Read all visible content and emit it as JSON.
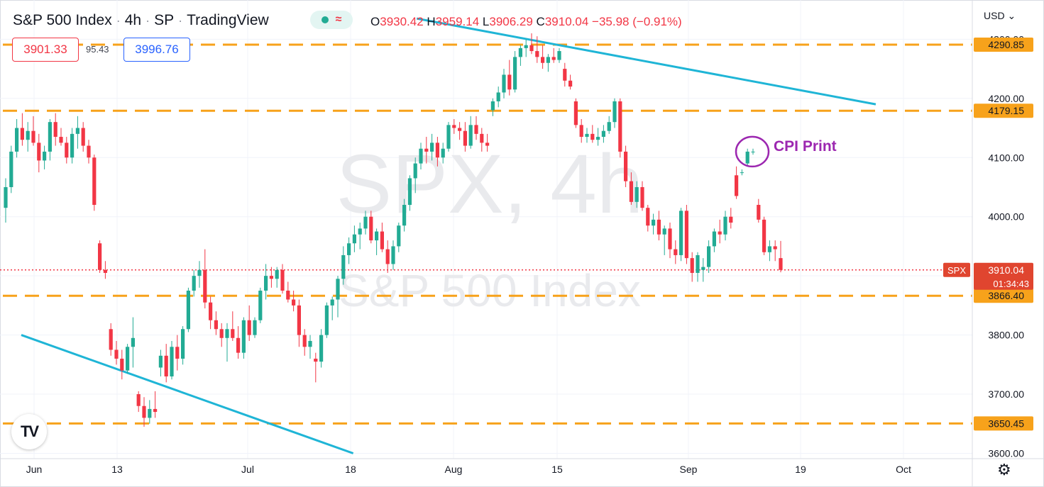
{
  "header": {
    "symbol_name": "S&P 500 Index",
    "interval": "4h",
    "exchange": "SP",
    "source": "TradingView",
    "ohlc": {
      "open_label": "O",
      "open": "3930.42",
      "high_label": "H",
      "high": "3959.14",
      "low_label": "L",
      "low": "3906.29",
      "close_label": "C",
      "close": "3910.04",
      "change": "−35.98",
      "change_pct": "(−0.91%)"
    },
    "sell_price": "3901.33",
    "spread": "95.43",
    "buy_price": "3996.76",
    "currency": "USD"
  },
  "watermark": {
    "symbol": "SPX, 4h",
    "name": "S&P 500 Index"
  },
  "colors": {
    "up": "#22ab94",
    "down": "#f23645",
    "level": "#f7a21b",
    "trend": "#1fb5d6",
    "annotation": "#9c27b0",
    "price_tag": "#e0452f"
  },
  "icons": {
    "logo": "tradingview-logo-icon",
    "settings": "gear-icon",
    "status": "status-dot-icon",
    "chevron": "chevron-down-icon"
  },
  "chart_data": {
    "type": "candlestick",
    "symbol": "SPX",
    "interval": "4h",
    "y_axis": {
      "min": 3600,
      "max": 4300,
      "ticks": [
        "3600.00",
        "3700.00",
        "3800.00",
        "3900.00",
        "4000.00",
        "4100.00",
        "4200.00",
        "4300.00"
      ]
    },
    "x_axis": {
      "ticks": [
        "Jun",
        "13",
        "Jul",
        "18",
        "Aug",
        "15",
        "Sep",
        "19",
        "Oct"
      ]
    },
    "horizontal_levels": [
      4290.85,
      4179.15,
      3866.4,
      3650.45
    ],
    "level_labels": [
      "4290.85",
      "4179.15",
      "3866.40",
      "3650.45"
    ],
    "current_price": {
      "symbol": "SPX",
      "price": 3910.04,
      "label": "3910.04",
      "countdown": "01:34:43"
    },
    "trendlines": [
      {
        "from": {
          "date": "2022-06-01",
          "price": 3800
        },
        "to": {
          "date": "2022-07-18",
          "price": 3600
        }
      },
      {
        "from": {
          "date": "2022-07-27",
          "price": 4335
        },
        "to": {
          "date": "2022-09-30",
          "price": 4190
        }
      }
    ],
    "annotation": {
      "text": "CPI Print",
      "date": "2022-09-10",
      "price": 4110
    },
    "candles": [
      [
        4015,
        4065,
        3990,
        4050
      ],
      [
        4050,
        4120,
        4040,
        4110
      ],
      [
        4110,
        4165,
        4100,
        4150
      ],
      [
        4150,
        4175,
        4120,
        4130
      ],
      [
        4130,
        4160,
        4110,
        4145
      ],
      [
        4145,
        4170,
        4120,
        4125
      ],
      [
        4125,
        4140,
        4075,
        4095
      ],
      [
        4095,
        4120,
        4080,
        4110
      ],
      [
        4110,
        4165,
        4095,
        4160
      ],
      [
        4160,
        4175,
        4120,
        4135
      ],
      [
        4135,
        4150,
        4120,
        4125
      ],
      [
        4125,
        4135,
        4090,
        4100
      ],
      [
        4100,
        4150,
        4090,
        4140
      ],
      [
        4140,
        4170,
        4115,
        4150
      ],
      [
        4150,
        4160,
        4110,
        4120
      ],
      [
        4120,
        4130,
        4090,
        4100
      ],
      [
        4100,
        4105,
        4010,
        4020
      ],
      [
        3955,
        3960,
        3905,
        3910
      ],
      [
        3910,
        3925,
        3895,
        3905
      ],
      [
        3810,
        3820,
        3765,
        3775
      ],
      [
        3775,
        3790,
        3750,
        3760
      ],
      [
        3760,
        3775,
        3725,
        3740
      ],
      [
        3740,
        3785,
        3735,
        3780
      ],
      [
        3780,
        3830,
        3745,
        3795
      ],
      [
        3700,
        3705,
        3670,
        3680
      ],
      [
        3680,
        3695,
        3645,
        3660
      ],
      [
        3660,
        3690,
        3650,
        3675
      ],
      [
        3675,
        3705,
        3660,
        3670
      ],
      [
        3745,
        3775,
        3730,
        3765
      ],
      [
        3765,
        3785,
        3720,
        3730
      ],
      [
        3730,
        3790,
        3725,
        3780
      ],
      [
        3780,
        3800,
        3740,
        3760
      ],
      [
        3760,
        3815,
        3750,
        3810
      ],
      [
        3810,
        3880,
        3805,
        3875
      ],
      [
        3875,
        3910,
        3865,
        3900
      ],
      [
        3900,
        3925,
        3880,
        3910
      ],
      [
        3910,
        3945,
        3845,
        3855
      ],
      [
        3855,
        3865,
        3810,
        3825
      ],
      [
        3825,
        3840,
        3800,
        3810
      ],
      [
        3810,
        3820,
        3780,
        3795
      ],
      [
        3795,
        3820,
        3755,
        3810
      ],
      [
        3810,
        3840,
        3790,
        3795
      ],
      [
        3795,
        3815,
        3760,
        3770
      ],
      [
        3770,
        3830,
        3760,
        3825
      ],
      [
        3825,
        3850,
        3790,
        3800
      ],
      [
        3800,
        3830,
        3795,
        3825
      ],
      [
        3825,
        3880,
        3820,
        3875
      ],
      [
        3875,
        3920,
        3860,
        3900
      ],
      [
        3900,
        3915,
        3880,
        3895
      ],
      [
        3895,
        3915,
        3880,
        3910
      ],
      [
        3910,
        3920,
        3870,
        3875
      ],
      [
        3875,
        3890,
        3855,
        3860
      ],
      [
        3860,
        3875,
        3840,
        3850
      ],
      [
        3850,
        3860,
        3780,
        3800
      ],
      [
        3800,
        3810,
        3765,
        3780
      ],
      [
        3780,
        3800,
        3760,
        3790
      ],
      [
        3760,
        3770,
        3720,
        3755
      ],
      [
        3755,
        3810,
        3745,
        3800
      ],
      [
        3800,
        3855,
        3795,
        3850
      ],
      [
        3850,
        3865,
        3825,
        3860
      ],
      [
        3860,
        3900,
        3830,
        3895
      ],
      [
        3895,
        3950,
        3885,
        3935
      ],
      [
        3935,
        3965,
        3920,
        3955
      ],
      [
        3955,
        3985,
        3940,
        3970
      ],
      [
        3970,
        3990,
        3945,
        3980
      ],
      [
        3980,
        4010,
        3970,
        4000
      ],
      [
        4000,
        4010,
        3955,
        3960
      ],
      [
        3960,
        3980,
        3935,
        3975
      ],
      [
        3975,
        3990,
        3940,
        3945
      ],
      [
        3945,
        3960,
        3905,
        3920
      ],
      [
        3920,
        3960,
        3910,
        3950
      ],
      [
        3950,
        3990,
        3940,
        3985
      ],
      [
        3985,
        4030,
        3975,
        4020
      ],
      [
        4020,
        4070,
        4010,
        4065
      ],
      [
        4065,
        4100,
        4040,
        4090
      ],
      [
        4090,
        4125,
        4080,
        4115
      ],
      [
        4115,
        4135,
        4090,
        4110
      ],
      [
        4110,
        4140,
        4095,
        4125
      ],
      [
        4125,
        4135,
        4085,
        4100
      ],
      [
        4100,
        4125,
        4090,
        4115
      ],
      [
        4115,
        4160,
        4110,
        4155
      ],
      [
        4155,
        4165,
        4140,
        4150
      ],
      [
        4150,
        4160,
        4130,
        4145
      ],
      [
        4145,
        4160,
        4110,
        4120
      ],
      [
        4120,
        4170,
        4115,
        4155
      ],
      [
        4155,
        4170,
        4130,
        4140
      ],
      [
        4140,
        4150,
        4110,
        4125
      ],
      [
        4125,
        4140,
        4110,
        4120
      ],
      [
        4180,
        4200,
        4170,
        4195
      ],
      [
        4195,
        4220,
        4185,
        4210
      ],
      [
        4210,
        4250,
        4200,
        4240
      ],
      [
        4240,
        4265,
        4205,
        4215
      ],
      [
        4215,
        4280,
        4210,
        4270
      ],
      [
        4270,
        4290,
        4255,
        4285
      ],
      [
        4285,
        4300,
        4270,
        4290
      ],
      [
        4290,
        4310,
        4275,
        4280
      ],
      [
        4280,
        4305,
        4260,
        4270
      ],
      [
        4270,
        4290,
        4250,
        4260
      ],
      [
        4260,
        4275,
        4245,
        4270
      ],
      [
        4270,
        4285,
        4260,
        4265
      ],
      [
        4265,
        4285,
        4260,
        4280
      ],
      [
        4250,
        4260,
        4220,
        4230
      ],
      [
        4230,
        4240,
        4215,
        4220
      ],
      [
        4195,
        4200,
        4150,
        4155
      ],
      [
        4155,
        4165,
        4125,
        4135
      ],
      [
        4135,
        4150,
        4125,
        4140
      ],
      [
        4140,
        4155,
        4125,
        4130
      ],
      [
        4130,
        4150,
        4120,
        4135
      ],
      [
        4135,
        4155,
        4125,
        4145
      ],
      [
        4145,
        4170,
        4140,
        4160
      ],
      [
        4160,
        4200,
        4150,
        4195
      ],
      [
        4195,
        4200,
        4100,
        4110
      ],
      [
        4110,
        4120,
        4050,
        4060
      ],
      [
        4060,
        4075,
        4020,
        4025
      ],
      [
        4025,
        4060,
        4015,
        4050
      ],
      [
        4050,
        4060,
        4010,
        4015
      ],
      [
        4015,
        4020,
        3975,
        3985
      ],
      [
        3985,
        4005,
        3970,
        3995
      ],
      [
        3995,
        4010,
        3960,
        3970
      ],
      [
        3970,
        3985,
        3935,
        3980
      ],
      [
        3980,
        3990,
        3930,
        3945
      ],
      [
        3945,
        3960,
        3920,
        3935
      ],
      [
        3935,
        4015,
        3925,
        4010
      ],
      [
        4010,
        4020,
        3920,
        3930
      ],
      [
        3930,
        3940,
        3890,
        3905
      ],
      [
        3905,
        3940,
        3890,
        3935
      ],
      [
        3910,
        3930,
        3890,
        3915
      ],
      [
        3915,
        3960,
        3905,
        3950
      ],
      [
        3950,
        3980,
        3940,
        3975
      ],
      [
        3975,
        3995,
        3955,
        3970
      ],
      [
        3970,
        4010,
        3960,
        4000
      ],
      [
        4000,
        4015,
        3980,
        3990
      ],
      [
        4070,
        4085,
        4030,
        4035
      ],
      [
        4075,
        4080,
        4070,
        4075
      ],
      [
        4090,
        4115,
        4085,
        4110
      ],
      [
        4110,
        4115,
        4105,
        4110
      ],
      [
        4020,
        4030,
        3990,
        3995
      ],
      [
        3995,
        4000,
        3935,
        3940
      ],
      [
        3940,
        3960,
        3925,
        3950
      ],
      [
        3950,
        3960,
        3925,
        3945
      ],
      [
        3930,
        3959,
        3906,
        3910
      ]
    ]
  }
}
